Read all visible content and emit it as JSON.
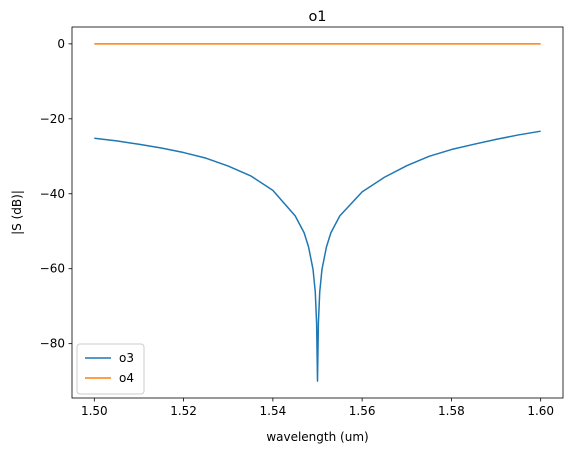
{
  "chart_data": {
    "type": "line",
    "title": "o1",
    "xlabel": "wavelength (um)",
    "ylabel": "|S (dB)|",
    "xlim": [
      1.495,
      1.605
    ],
    "ylim": [
      -94.5,
      4.5
    ],
    "xticks": [
      1.5,
      1.52,
      1.54,
      1.56,
      1.58,
      1.6
    ],
    "xtick_labels": [
      "1.50",
      "1.52",
      "1.54",
      "1.56",
      "1.58",
      "1.60"
    ],
    "yticks": [
      0,
      -20,
      -40,
      -60,
      -80
    ],
    "ytick_labels": [
      "0",
      "−20",
      "−40",
      "−60",
      "−80"
    ],
    "grid": false,
    "legend_position": "lower-left",
    "series": [
      {
        "name": "o3",
        "color": "#1f77b4",
        "x": [
          1.5,
          1.505,
          1.51,
          1.515,
          1.52,
          1.525,
          1.53,
          1.535,
          1.54,
          1.545,
          1.547,
          1.548,
          1.549,
          1.5495,
          1.5498,
          1.55,
          1.5502,
          1.5505,
          1.551,
          1.552,
          1.553,
          1.555,
          1.56,
          1.565,
          1.57,
          1.575,
          1.58,
          1.585,
          1.59,
          1.595,
          1.6
        ],
        "y": [
          -25.2,
          -25.9,
          -26.8,
          -27.8,
          -29.0,
          -30.5,
          -32.6,
          -35.2,
          -39.1,
          -45.9,
          -50.4,
          -54.2,
          -60.2,
          -66.2,
          -74.5,
          -90.0,
          -74.5,
          -66.2,
          -60.2,
          -54.2,
          -50.4,
          -45.9,
          -39.5,
          -35.6,
          -32.5,
          -30.0,
          -28.2,
          -26.8,
          -25.5,
          -24.3,
          -23.3
        ]
      },
      {
        "name": "o4",
        "color": "#ff7f0e",
        "x": [
          1.5,
          1.6
        ],
        "y": [
          0.0,
          0.0
        ]
      }
    ]
  }
}
